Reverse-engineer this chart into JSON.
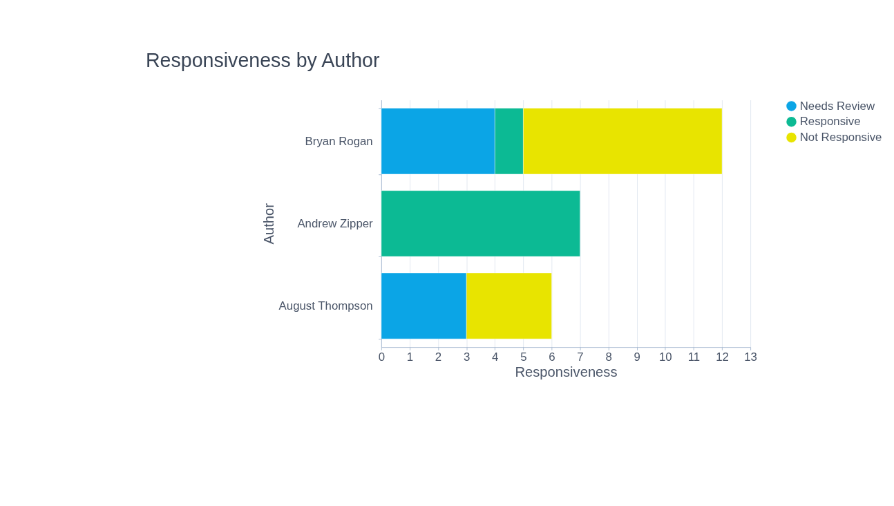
{
  "chart_data": {
    "type": "bar",
    "orientation": "horizontal",
    "stacked": true,
    "title": "Responsiveness by Author",
    "xlabel": "Responsiveness",
    "ylabel": "Author",
    "categories": [
      "Bryan Rogan",
      "Andrew Zipper",
      "August Thompson"
    ],
    "series": [
      {
        "name": "Needs Review",
        "color": "#0ba5e6",
        "values": [
          4,
          null,
          3
        ]
      },
      {
        "name": "Responsive",
        "color": "#0cba94",
        "values": [
          1,
          7,
          null
        ]
      },
      {
        "name": "Not Responsive",
        "color": "#e8e400",
        "values": [
          7,
          null,
          3
        ]
      }
    ],
    "xlim": [
      0,
      13
    ],
    "xticks": [
      0,
      1,
      2,
      3,
      4,
      5,
      6,
      7,
      8,
      9,
      10,
      11,
      12,
      13
    ],
    "grid": "x",
    "legend": "right"
  }
}
